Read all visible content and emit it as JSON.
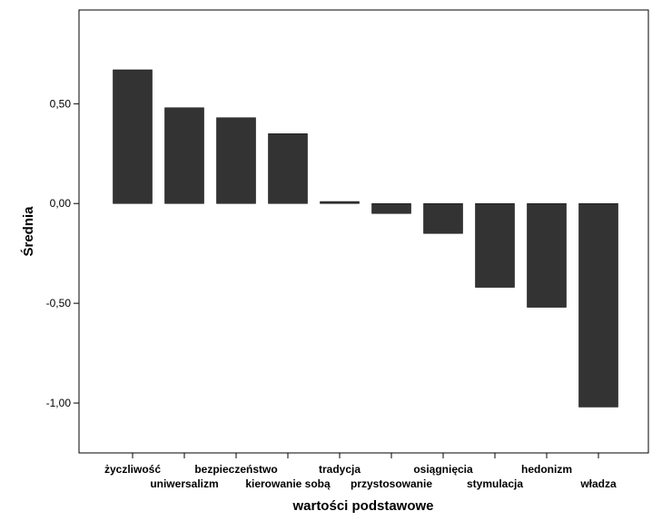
{
  "chart_data": {
    "type": "bar",
    "title": "",
    "xlabel": "wartości podstawowe",
    "ylabel": "Średnia",
    "categories": [
      "życzliwość",
      "uniwersalizm",
      "bezpieczeństwo",
      "kierowanie sobą",
      "tradycja",
      "przystosowanie",
      "osiągnięcia",
      "stymulacja",
      "hedonizm",
      "władza"
    ],
    "values": [
      0.67,
      0.48,
      0.43,
      0.35,
      0.01,
      -0.05,
      -0.15,
      -0.42,
      -0.52,
      -1.02
    ],
    "ylim": [
      -1.25,
      0.97
    ],
    "yticks": [
      0.5,
      0.0,
      -0.5,
      -1.0
    ],
    "ytick_labels": [
      "0,50",
      "0,00",
      "-0,50",
      "-1,00"
    ],
    "grid": false,
    "legend": "none",
    "bar_color": "#333333",
    "plot_background": "#ffffff",
    "frame_color": "#000000"
  }
}
